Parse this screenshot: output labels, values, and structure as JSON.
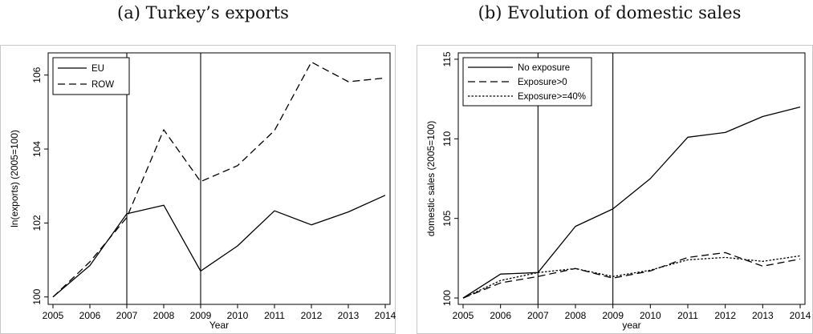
{
  "panel_a": {
    "title": "(a) Turkey’s exports"
  },
  "panel_b": {
    "title": "(b) Evolution of domestic sales"
  },
  "chart_data": [
    {
      "type": "line",
      "title": "",
      "xlabel": "Year",
      "ylabel": "ln(exports) (2005=100)",
      "x": [
        2005,
        2006,
        2007,
        2008,
        2009,
        2010,
        2011,
        2012,
        2013,
        2014
      ],
      "xlim": [
        2005,
        2014
      ],
      "ylim": [
        99.8,
        106.6
      ],
      "yticks": [
        100,
        102,
        104,
        106
      ],
      "vlines": [
        2007,
        2009
      ],
      "legend_position": "top-left",
      "series": [
        {
          "name": "EU",
          "style": "solid",
          "color": "#000000",
          "values": [
            100.0,
            100.85,
            102.25,
            102.48,
            100.7,
            101.38,
            102.33,
            101.95,
            102.3,
            102.75
          ]
        },
        {
          "name": "ROW",
          "style": "dashed",
          "color": "#000000",
          "values": [
            100.0,
            100.95,
            102.15,
            104.52,
            103.12,
            103.55,
            104.5,
            106.35,
            105.82,
            105.92
          ]
        }
      ],
      "grid": false
    },
    {
      "type": "line",
      "title": "",
      "xlabel": "year",
      "ylabel": "domestic sales (2005=100)",
      "x": [
        2005,
        2006,
        2007,
        2008,
        2009,
        2010,
        2011,
        2012,
        2013,
        2014
      ],
      "xlim": [
        2005,
        2014
      ],
      "ylim": [
        99.6,
        115.4
      ],
      "yticks": [
        100,
        105,
        110,
        115
      ],
      "vlines": [
        2007,
        2009
      ],
      "legend_position": "top-left",
      "series": [
        {
          "name": "No exposure",
          "style": "solid",
          "color": "#000000",
          "values": [
            100.0,
            101.5,
            101.6,
            104.5,
            105.6,
            107.5,
            110.1,
            110.4,
            111.4,
            112.0
          ]
        },
        {
          "name": "Exposure>0",
          "style": "dashed",
          "color": "#000000",
          "values": [
            100.0,
            100.95,
            101.35,
            101.85,
            101.25,
            101.7,
            102.55,
            102.85,
            102.0,
            102.45
          ]
        },
        {
          "name": "Exposure>=40%",
          "style": "dotted",
          "color": "#000000",
          "values": [
            100.0,
            101.1,
            101.6,
            101.85,
            101.35,
            101.75,
            102.4,
            102.55,
            102.3,
            102.65
          ]
        }
      ],
      "grid": false
    }
  ]
}
